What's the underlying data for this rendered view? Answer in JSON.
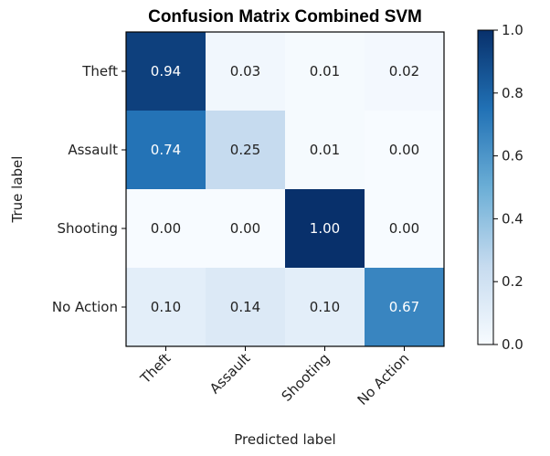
{
  "chart_data": {
    "type": "heatmap",
    "title": "Confusion Matrix Combined SVM",
    "xlabel": "Predicted label",
    "ylabel": "True label",
    "row_labels": [
      "Theft",
      "Assault",
      "Shooting",
      "No Action"
    ],
    "col_labels": [
      "Theft",
      "Assault",
      "Shooting",
      "No Action"
    ],
    "values": [
      [
        "0.94",
        "0.03",
        "0.01",
        "0.02"
      ],
      [
        "0.74",
        "0.25",
        "0.01",
        "0.00"
      ],
      [
        "0.00",
        "0.00",
        "1.00",
        "0.00"
      ],
      [
        "0.10",
        "0.14",
        "0.10",
        "0.67"
      ]
    ],
    "colormap": "Blues",
    "colorbar": {
      "range": [
        0.0,
        1.0
      ],
      "ticks": [
        "0.0",
        "0.2",
        "0.4",
        "0.6",
        "0.8",
        "1.0"
      ]
    },
    "grid": false
  }
}
